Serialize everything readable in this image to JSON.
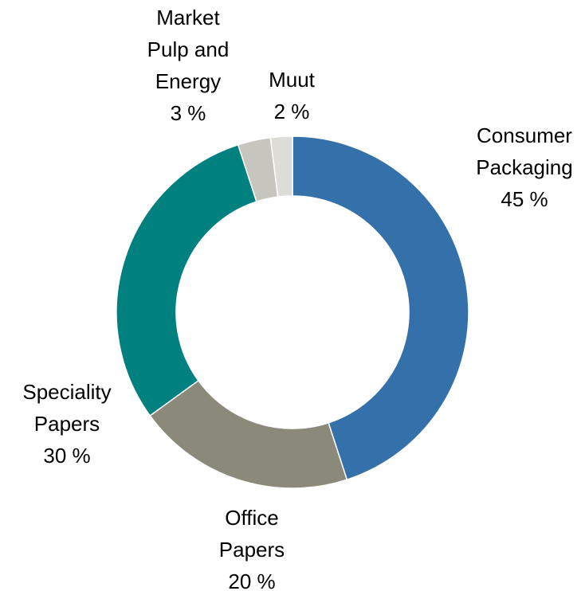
{
  "chart_data": {
    "type": "donut",
    "categories": [
      "Consumer Packaging",
      "Office Papers",
      "Speciality Papers",
      "Market Pulp and Energy",
      "Muut"
    ],
    "values": [
      45,
      20,
      30,
      3,
      2
    ],
    "value_labels": [
      "45 %",
      "20 %",
      "30 %",
      "3 %",
      "2 %"
    ],
    "colors": [
      "#3471aa",
      "#8b8a7a",
      "#00807e",
      "#c6c5be",
      "#dddcd6"
    ]
  }
}
